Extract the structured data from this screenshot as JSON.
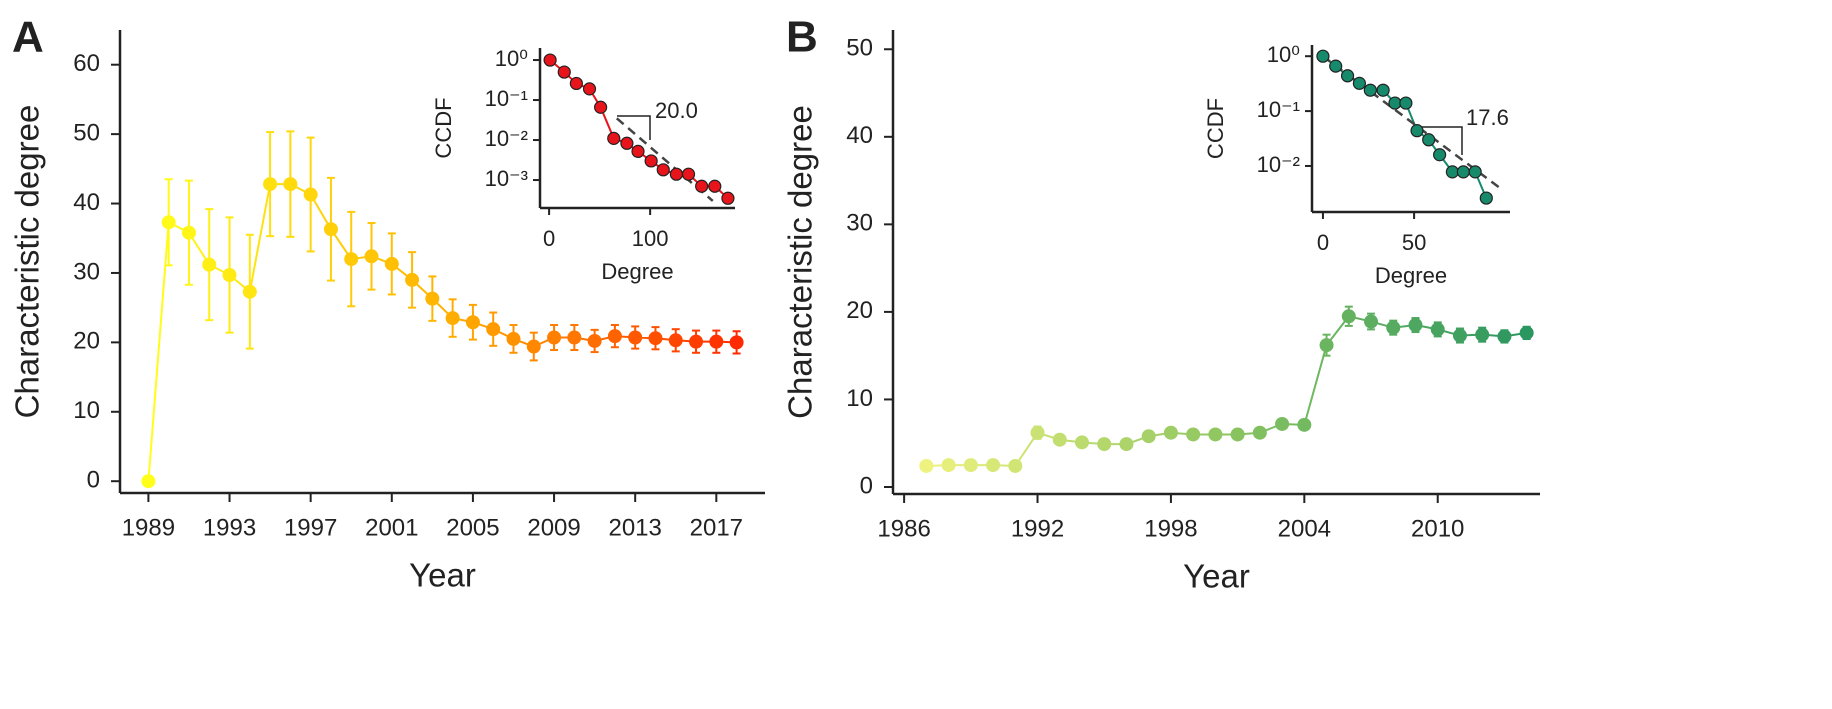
{
  "chart_data": [
    {
      "type": "line",
      "panel": "A",
      "xlabel": "Year",
      "ylabel": "Characteristic degree",
      "x": [
        1989,
        1990,
        1991,
        1992,
        1993,
        1994,
        1995,
        1996,
        1997,
        1998,
        1999,
        2000,
        2001,
        2002,
        2003,
        2004,
        2005,
        2006,
        2007,
        2008,
        2009,
        2010,
        2011,
        2012,
        2013,
        2014,
        2015,
        2016,
        2017,
        2018
      ],
      "values": [
        0,
        37.3,
        35.8,
        31.2,
        29.7,
        27.3,
        42.8,
        42.8,
        41.3,
        36.3,
        32,
        32.4,
        31.3,
        29,
        26.3,
        23.5,
        22.9,
        21.9,
        20.5,
        19.4,
        20.7,
        20.7,
        20.2,
        20.9,
        20.7,
        20.6,
        20.3,
        20.1,
        20.1,
        20.0
      ],
      "errors": [
        null,
        6.2,
        7.5,
        8,
        8.3,
        8.2,
        7.5,
        7.6,
        8.2,
        7.4,
        6.8,
        4.8,
        4.4,
        4,
        3.2,
        2.7,
        2.5,
        2.4,
        2,
        2,
        1.8,
        1.8,
        1.6,
        1.6,
        1.6,
        1.6,
        1.6,
        1.6,
        1.6,
        1.6
      ],
      "colormap": [
        "#ffff1a",
        "#ffb300",
        "#ff2a00"
      ],
      "xlim": [
        1987.6,
        2019.4
      ],
      "ylim": [
        -1.7,
        65
      ],
      "xticks": [
        1989,
        1993,
        1997,
        2001,
        2005,
        2009,
        2013,
        2017
      ],
      "yticks": [
        0,
        10,
        20,
        30,
        40,
        50,
        60
      ],
      "inset": {
        "type": "line",
        "xlabel": "Degree",
        "ylabel": "CCDF",
        "log_y": true,
        "color": "#e8141c",
        "x": [
          1,
          15,
          27,
          40,
          51,
          64,
          77,
          88,
          101,
          113,
          126,
          138,
          151,
          164,
          177
        ],
        "values": [
          1,
          0.5,
          0.26,
          0.19,
          0.066,
          0.011,
          0.0083,
          0.0052,
          0.003,
          0.0018,
          0.0014,
          0.0014,
          0.0007,
          0.0007,
          0.00035
        ],
        "fit": {
          "x": [
            67,
            162
          ],
          "values": [
            0.035,
            0.0003
          ]
        },
        "annotation": "20.0",
        "xlim": [
          -9,
          184
        ],
        "ylim": [
          2,
          0.0002
        ],
        "xticks": [
          0,
          100
        ],
        "yticks": [
          {
            "value": 1,
            "label": "10⁰"
          },
          {
            "value": 0.1,
            "label": "10⁻¹"
          },
          {
            "value": 0.01,
            "label": "10⁻²"
          },
          {
            "value": 0.001,
            "label": "10⁻³"
          }
        ]
      }
    },
    {
      "type": "line",
      "panel": "B",
      "xlabel": "Year",
      "ylabel": "Characteristic degree",
      "x": [
        1987,
        1988,
        1989,
        1990,
        1991,
        1992,
        1993,
        1994,
        1995,
        1996,
        1997,
        1998,
        1999,
        2000,
        2001,
        2002,
        2003,
        2004,
        2005,
        2006,
        2007,
        2008,
        2009,
        2010,
        2011,
        2012,
        2013,
        2014
      ],
      "values": [
        2.4,
        2.5,
        2.5,
        2.5,
        2.4,
        6.2,
        5.4,
        5.1,
        4.9,
        4.9,
        5.8,
        6.2,
        6.0,
        6.0,
        6.0,
        6.2,
        7.2,
        7.1,
        16.2,
        19.5,
        18.9,
        18.2,
        18.5,
        18.0,
        17.3,
        17.4,
        17.2,
        17.6
      ],
      "errors": [
        0.3,
        0.3,
        0.3,
        0.3,
        0.3,
        0.7,
        0.3,
        0.3,
        0.3,
        0.3,
        0.3,
        0.3,
        0.3,
        0.3,
        0.3,
        0.3,
        0.3,
        0.3,
        1.2,
        1.1,
        0.9,
        0.8,
        0.8,
        0.8,
        0.8,
        0.8,
        0.7,
        0.7
      ],
      "colormap": [
        "#eef27e",
        "#8cc560",
        "#2a9660"
      ],
      "xlim": [
        1985.5,
        2014.6
      ],
      "ylim": [
        -0.8,
        52.2
      ],
      "xticks": [
        1986,
        1992,
        1998,
        2004,
        2010
      ],
      "yticks": [
        0,
        10,
        20,
        30,
        40,
        50
      ],
      "inset": {
        "type": "line",
        "xlabel": "Degree",
        "ylabel": "CCDF",
        "log_y": true,
        "color": "#178a6c",
        "x": [
          0,
          7,
          13.5,
          20,
          26,
          33,
          39.5,
          45.5,
          51.6,
          58,
          64,
          71,
          77,
          83.5,
          89.6
        ],
        "values": [
          1,
          0.66,
          0.44,
          0.32,
          0.24,
          0.24,
          0.14,
          0.14,
          0.044,
          0.03,
          0.016,
          0.0078,
          0.0078,
          0.0078,
          0.0026
        ],
        "fit": {
          "x": [
            0,
            97
          ],
          "values": [
            1,
            0.004
          ]
        },
        "annotation": "17.6",
        "xlim": [
          -6,
          102.6
        ],
        "ylim": [
          1.6,
          0.00145
        ],
        "xticks": [
          0,
          50
        ],
        "yticks": [
          {
            "value": 1,
            "label": "10⁰"
          },
          {
            "value": 0.1,
            "label": "10⁻¹"
          },
          {
            "value": 0.01,
            "label": "10⁻²"
          }
        ]
      }
    }
  ]
}
